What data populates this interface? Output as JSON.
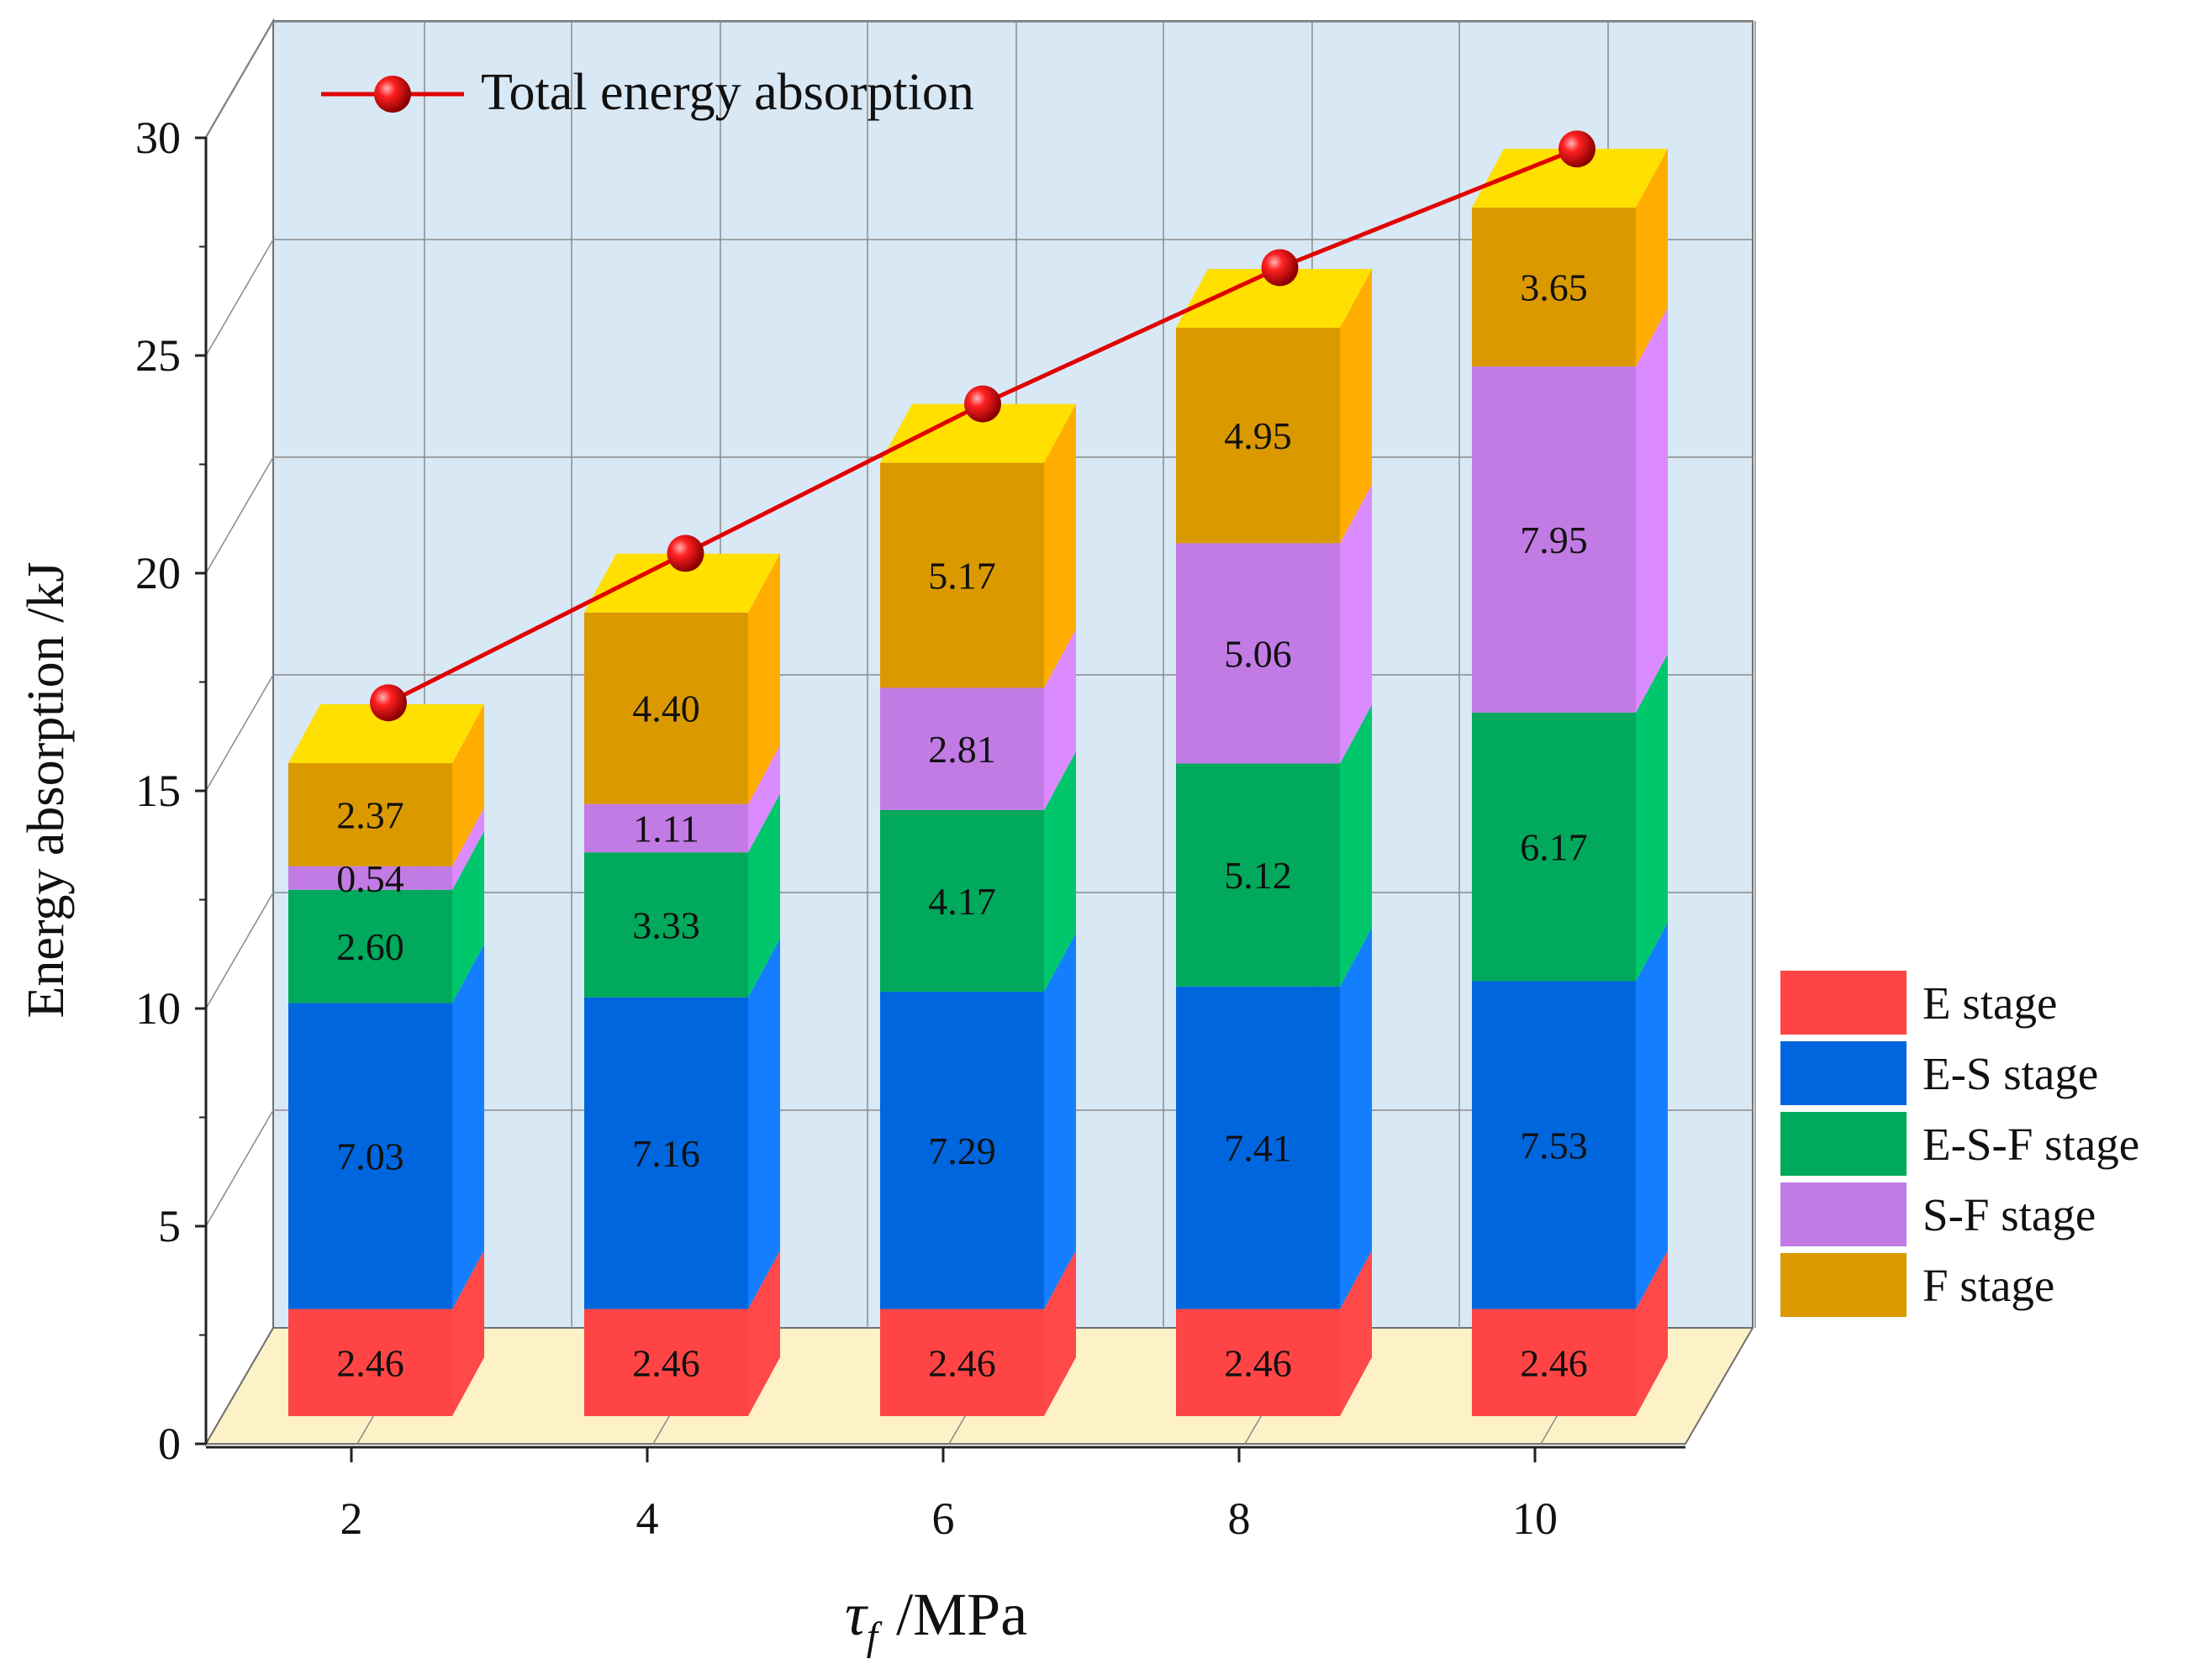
{
  "chart_data": {
    "type": "bar",
    "subtype": "stacked-3d-bar-with-line",
    "categories": [
      "2",
      "4",
      "6",
      "8",
      "10"
    ],
    "series": [
      {
        "name": "E stage",
        "color": "#fe4444",
        "top_color": "#ff6a6a",
        "side_color": "#ff4848",
        "values": [
          2.46,
          2.46,
          2.46,
          2.46,
          2.46
        ]
      },
      {
        "name": "E-S stage",
        "color": "#0066dd",
        "top_color": "#2f8cff",
        "side_color": "#137fff",
        "values": [
          7.03,
          7.16,
          7.29,
          7.41,
          7.53
        ]
      },
      {
        "name": "E-S-F stage",
        "color": "#00a95c",
        "top_color": "#19d477",
        "side_color": "#00c76b",
        "values": [
          2.6,
          3.33,
          4.17,
          5.12,
          6.17
        ]
      },
      {
        "name": "S-F stage",
        "color": "#c27be5",
        "top_color": "#e09bff",
        "side_color": "#dc8aff",
        "values": [
          0.54,
          1.11,
          2.81,
          5.06,
          7.95
        ]
      },
      {
        "name": "F stage",
        "color": "#db9900",
        "top_color": "#ffe000",
        "side_color": "#ffad00",
        "values": [
          2.37,
          4.4,
          5.17,
          4.95,
          3.65
        ]
      }
    ],
    "line": {
      "name": "Total energy absorption",
      "color": "#e00000",
      "values": [
        17.3,
        20.7,
        24.1,
        27.2,
        29.9
      ]
    },
    "xlabel_symbol": "τ",
    "xlabel_subscript": "f",
    "xlabel_unit": "/MPa",
    "ylabel": "Energy absorption /kJ",
    "ylim": [
      0,
      30
    ],
    "yticks": [
      0,
      5,
      10,
      15,
      20,
      25,
      30
    ],
    "legend_position": "right",
    "line_legend_position": "top-left",
    "wall_color": "#d9e8f5",
    "floor_color": "#fdf1c7"
  }
}
